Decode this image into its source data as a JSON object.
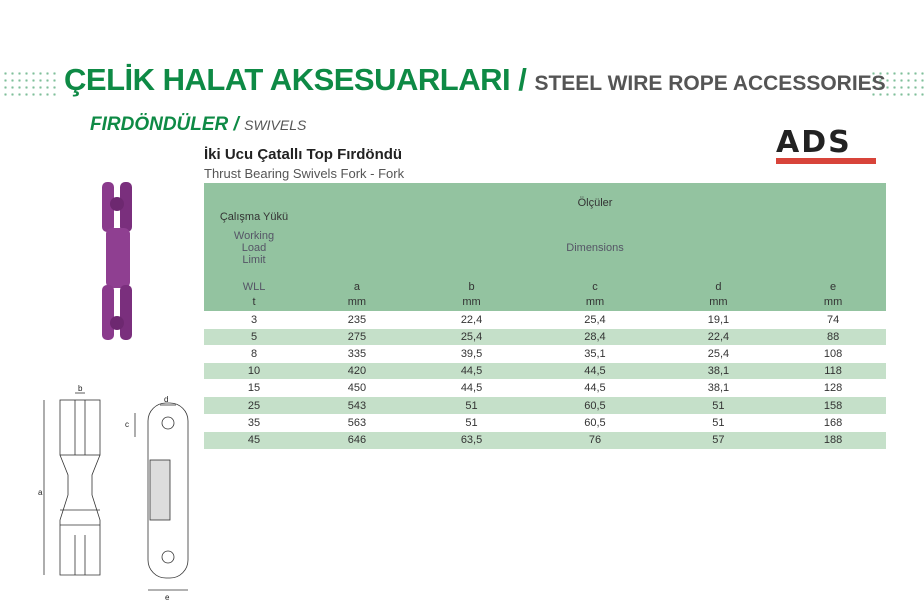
{
  "header": {
    "title_tr": "ÇELİK HALAT AKSESUARLARI /",
    "title_en": "STEEL WIRE ROPE ACCESSORIES"
  },
  "section": {
    "title_tr": "FIRDÖNDÜLER /",
    "title_en": "SWIVELS"
  },
  "product": {
    "title_tr": "İki Ucu Çatallı Top Fırdöndü",
    "title_en": "Thrust Bearing Swivels Fork - Fork"
  },
  "logo": {
    "text": "ADS",
    "accent": "#d8443a"
  },
  "colors": {
    "brand_green": "#0e8a45",
    "header_bg": "#93c3a0",
    "row_alt": "#c5e0c9",
    "product": "#8a3a8c"
  },
  "table": {
    "wll_tr": "Çalışma Yükü",
    "wll_en": "Working Load Limit",
    "dims_tr": "Ölçüler",
    "dims_en": "Dimensions",
    "columns": [
      {
        "name": "WLL",
        "unit": "t"
      },
      {
        "name": "a",
        "unit": "mm"
      },
      {
        "name": "b",
        "unit": "mm"
      },
      {
        "name": "c",
        "unit": "mm"
      },
      {
        "name": "d",
        "unit": "mm"
      },
      {
        "name": "e",
        "unit": "mm"
      }
    ],
    "rows": [
      [
        "3",
        "235",
        "22,4",
        "25,4",
        "19,1",
        "74"
      ],
      [
        "5",
        "275",
        "25,4",
        "28,4",
        "22,4",
        "88"
      ],
      [
        "8",
        "335",
        "39,5",
        "35,1",
        "25,4",
        "108"
      ],
      [
        "10",
        "420",
        "44,5",
        "44,5",
        "38,1",
        "118"
      ],
      [
        "15",
        "450",
        "44,5",
        "44,5",
        "38,1",
        "128"
      ],
      [
        "25",
        "543",
        "51",
        "60,5",
        "51",
        "158"
      ],
      [
        "35",
        "563",
        "51",
        "60,5",
        "51",
        "168"
      ],
      [
        "45",
        "646",
        "63,5",
        "76",
        "57",
        "188"
      ]
    ]
  },
  "diagram": {
    "labels": [
      "a",
      "b",
      "c",
      "d",
      "e"
    ]
  }
}
